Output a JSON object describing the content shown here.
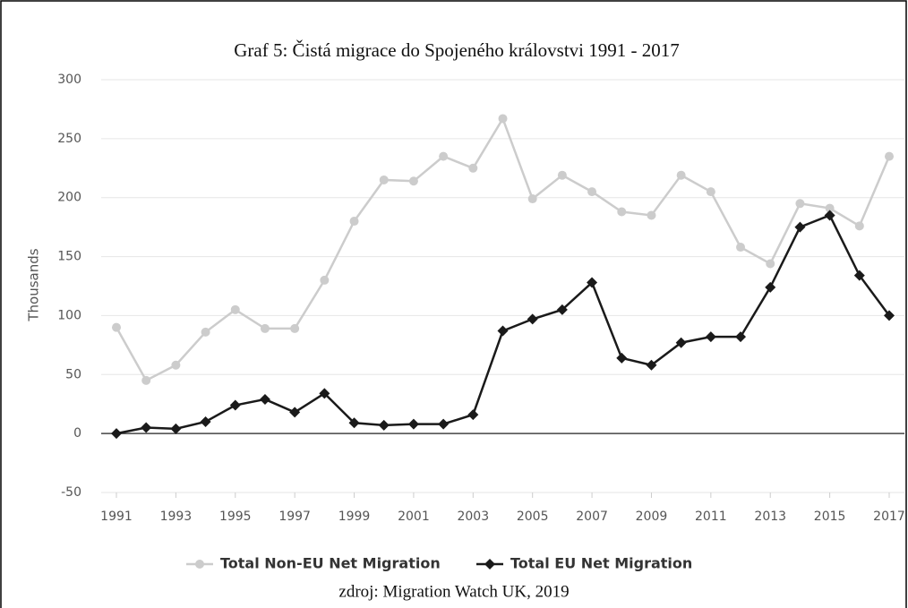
{
  "chart_data": {
    "type": "line",
    "title": "Graf 5: Čistá migrace do Spojeného královstvi 1991 - 2017",
    "ylabel": "Thousands",
    "source": "zdroj: Migration Watch UK, 2019",
    "x": [
      1991,
      1992,
      1993,
      1994,
      1995,
      1996,
      1997,
      1998,
      1999,
      2000,
      2001,
      2002,
      2003,
      2004,
      2005,
      2006,
      2007,
      2008,
      2009,
      2010,
      2011,
      2012,
      2013,
      2014,
      2015,
      2016,
      2017
    ],
    "series": [
      {
        "name": "Total Non-EU Net Migration",
        "color": "#cccccc",
        "marker": "circle",
        "values": [
          90,
          45,
          58,
          86,
          105,
          89,
          89,
          130,
          180,
          215,
          214,
          235,
          225,
          267,
          199,
          219,
          205,
          188,
          185,
          219,
          205,
          158,
          144,
          195,
          191,
          176,
          235
        ]
      },
      {
        "name": "Total EU Net Migration",
        "color": "#1a1a1a",
        "marker": "diamond",
        "values": [
          0,
          5,
          4,
          10,
          24,
          29,
          18,
          34,
          9,
          7,
          8,
          8,
          16,
          87,
          97,
          105,
          128,
          64,
          58,
          77,
          82,
          82,
          124,
          175,
          185,
          134,
          100
        ]
      }
    ],
    "xlim": [
      1991,
      2017
    ],
    "xticks": [
      1991,
      1993,
      1995,
      1997,
      1999,
      2001,
      2003,
      2005,
      2007,
      2009,
      2011,
      2013,
      2015,
      2017
    ],
    "ylim": [
      -50,
      300
    ],
    "yticks": [
      -50,
      0,
      50,
      100,
      150,
      200,
      250,
      300
    ],
    "grid": true,
    "legend": "bottom"
  }
}
